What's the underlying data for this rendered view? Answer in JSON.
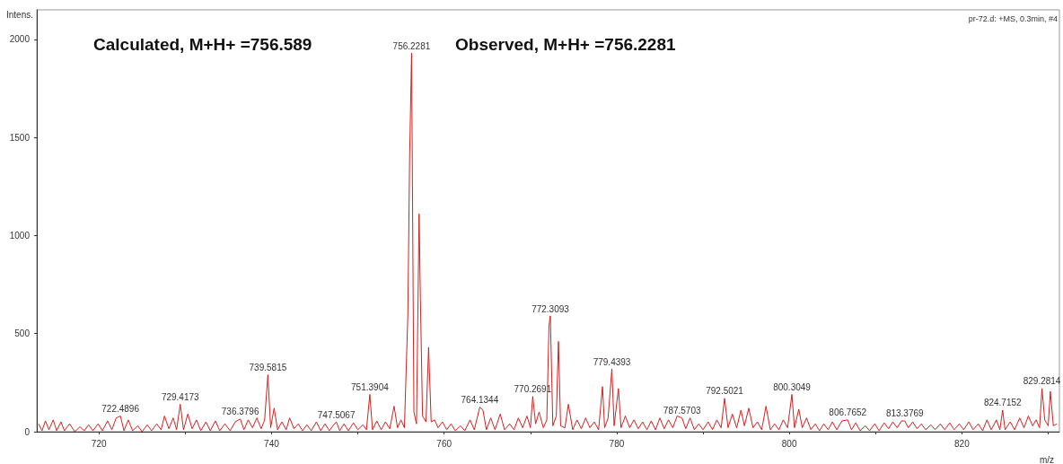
{
  "chart_data": {
    "type": "line",
    "subtitle": "pr-72.d: +MS, 0.3min, #4",
    "xlabel": "m/z",
    "ylabel": "Intens.",
    "color": "#d81e1e",
    "grid": false,
    "xlim": [
      712.8,
      831.3
    ],
    "xticks": [
      720,
      {
        "value": 730,
        "label": null
      },
      740,
      {
        "value": 750,
        "label": null
      },
      760,
      {
        "value": 770,
        "label": null
      },
      780,
      {
        "value": 790,
        "label": null
      },
      800,
      {
        "value": 810,
        "label": null
      },
      820,
      {
        "value": 830,
        "label": null
      }
    ],
    "ylim": [
      0,
      2150
    ],
    "yticks": [
      0,
      500,
      1000,
      1500,
      2000
    ],
    "annotations": [
      "Calculated, M+H+ =756.589",
      "Observed, M+H+ =756.2281",
      {
        "text": "722.4896",
        "x": 722.49,
        "y": 80
      },
      {
        "text": "729.4173",
        "x": 729.42,
        "y": 140
      },
      {
        "text": "736.3796",
        "x": 736.38,
        "y": 65
      },
      {
        "text": "739.5815",
        "x": 739.58,
        "y": 290
      },
      {
        "text": "747.5067",
        "x": 747.51,
        "y": 50
      },
      {
        "text": "751.3904",
        "x": 751.39,
        "y": 190
      },
      {
        "text": "756.2281",
        "x": 756.23,
        "y": 1930
      },
      {
        "text": "764.1344",
        "x": 764.13,
        "y": 125
      },
      {
        "text": "770.2691",
        "x": 770.27,
        "y": 180
      },
      {
        "text": "772.3093",
        "x": 772.31,
        "y": 590
      },
      {
        "text": "779.4393",
        "x": 779.44,
        "y": 320
      },
      {
        "text": "787.5703",
        "x": 787.57,
        "y": 70
      },
      {
        "text": "792.5021",
        "x": 792.5,
        "y": 170
      },
      {
        "text": "800.3049",
        "x": 800.3,
        "y": 190
      },
      {
        "text": "806.7652",
        "x": 806.77,
        "y": 60
      },
      {
        "text": "813.3769",
        "x": 813.38,
        "y": 55
      },
      {
        "text": "824.7152",
        "x": 824.72,
        "y": 110
      },
      {
        "text": "829.2814",
        "x": 829.28,
        "y": 220
      }
    ],
    "x": [
      713.0,
      713.4,
      713.8,
      714.2,
      714.7,
      715.1,
      715.6,
      716.0,
      716.6,
      717.2,
      717.8,
      718.3,
      718.8,
      719.3,
      719.9,
      720.4,
      721.0,
      721.5,
      722.0,
      722.49,
      722.9,
      723.4,
      723.9,
      724.5,
      725.0,
      725.6,
      726.1,
      726.7,
      727.2,
      727.6,
      728.1,
      728.6,
      729.0,
      729.42,
      729.8,
      730.3,
      730.8,
      731.3,
      731.8,
      732.4,
      732.9,
      733.5,
      734.0,
      734.6,
      735.2,
      735.8,
      736.38,
      736.8,
      737.3,
      737.8,
      738.3,
      738.8,
      739.2,
      739.58,
      739.9,
      740.3,
      740.7,
      741.2,
      741.7,
      742.1,
      742.6,
      743.1,
      743.6,
      744.1,
      744.6,
      745.2,
      745.7,
      746.2,
      746.7,
      747.1,
      747.51,
      747.9,
      748.4,
      748.9,
      749.5,
      750.0,
      750.6,
      751.0,
      751.39,
      751.7,
      752.2,
      752.7,
      753.2,
      753.7,
      754.2,
      754.6,
      755.0,
      755.4,
      755.8,
      756.0,
      756.23,
      756.5,
      756.8,
      757.1,
      757.25,
      757.5,
      757.9,
      758.2,
      758.5,
      758.9,
      759.3,
      759.8,
      760.3,
      760.8,
      761.3,
      761.9,
      762.4,
      763.0,
      763.5,
      764.13,
      764.5,
      764.9,
      765.4,
      765.9,
      766.5,
      767.0,
      767.6,
      768.1,
      768.6,
      769.1,
      769.6,
      770.0,
      770.27,
      770.6,
      771.0,
      771.5,
      771.9,
      772.15,
      772.31,
      772.6,
      773.0,
      773.25,
      773.5,
      774.0,
      774.4,
      774.9,
      775.4,
      775.9,
      776.4,
      776.9,
      777.4,
      777.9,
      778.35,
      778.6,
      779.0,
      779.44,
      779.7,
      780.2,
      780.5,
      781.0,
      781.5,
      782.0,
      782.5,
      783.0,
      783.5,
      784.0,
      784.5,
      785.0,
      785.5,
      786.0,
      786.5,
      787.0,
      787.57,
      788.0,
      788.5,
      789.0,
      789.5,
      790.0,
      790.6,
      791.1,
      791.6,
      792.1,
      792.5,
      792.9,
      793.4,
      793.9,
      794.4,
      794.8,
      795.3,
      795.8,
      796.3,
      796.8,
      797.3,
      797.8,
      798.3,
      798.8,
      799.3,
      799.8,
      800.3,
      800.6,
      801.1,
      801.5,
      802.0,
      802.5,
      803.0,
      803.5,
      804.0,
      804.5,
      805.0,
      805.5,
      806.1,
      806.77,
      807.2,
      807.7,
      808.2,
      808.8,
      809.3,
      809.9,
      810.4,
      811.0,
      811.5,
      812.0,
      812.5,
      813.0,
      813.38,
      813.8,
      814.3,
      814.8,
      815.3,
      815.8,
      816.4,
      816.9,
      817.5,
      818.0,
      818.6,
      819.1,
      819.7,
      820.2,
      820.8,
      821.3,
      821.9,
      822.4,
      822.9,
      823.4,
      824.0,
      824.4,
      824.72,
      825.0,
      825.6,
      826.1,
      826.7,
      827.2,
      827.7,
      828.2,
      828.6,
      829.0,
      829.28,
      829.6,
      830.0,
      830.25,
      830.6,
      831.0
    ],
    "values": [
      40,
      5,
      55,
      10,
      60,
      5,
      50,
      5,
      40,
      0,
      25,
      5,
      35,
      5,
      40,
      5,
      55,
      10,
      70,
      80,
      5,
      60,
      5,
      30,
      0,
      35,
      5,
      40,
      10,
      80,
      15,
      70,
      10,
      140,
      10,
      90,
      15,
      60,
      5,
      50,
      5,
      55,
      5,
      40,
      5,
      50,
      65,
      10,
      60,
      20,
      70,
      15,
      60,
      290,
      20,
      120,
      10,
      50,
      10,
      70,
      15,
      40,
      5,
      35,
      5,
      50,
      5,
      40,
      5,
      30,
      50,
      5,
      40,
      5,
      45,
      10,
      35,
      10,
      190,
      10,
      55,
      10,
      50,
      15,
      130,
      20,
      60,
      20,
      600,
      1395,
      1930,
      100,
      40,
      1110,
      680,
      80,
      50,
      430,
      50,
      60,
      20,
      50,
      10,
      40,
      5,
      30,
      5,
      60,
      10,
      125,
      110,
      10,
      70,
      10,
      90,
      10,
      40,
      10,
      70,
      20,
      80,
      20,
      180,
      40,
      100,
      20,
      60,
      540,
      590,
      30,
      80,
      460,
      30,
      20,
      140,
      10,
      60,
      15,
      70,
      20,
      50,
      10,
      230,
      20,
      70,
      320,
      30,
      220,
      20,
      80,
      20,
      60,
      15,
      50,
      10,
      55,
      10,
      70,
      15,
      60,
      20,
      80,
      70,
      15,
      70,
      10,
      40,
      10,
      50,
      10,
      60,
      20,
      170,
      20,
      90,
      20,
      110,
      30,
      120,
      20,
      50,
      10,
      130,
      10,
      40,
      10,
      60,
      20,
      190,
      20,
      115,
      20,
      70,
      10,
      40,
      5,
      40,
      10,
      50,
      10,
      55,
      60,
      10,
      45,
      5,
      30,
      5,
      40,
      5,
      45,
      15,
      50,
      20,
      55,
      55,
      20,
      50,
      15,
      40,
      10,
      35,
      10,
      40,
      10,
      45,
      10,
      40,
      10,
      50,
      10,
      40,
      5,
      60,
      10,
      60,
      10,
      110,
      10,
      50,
      10,
      70,
      20,
      80,
      30,
      60,
      20,
      220,
      60,
      30,
      205,
      30,
      40
    ]
  }
}
